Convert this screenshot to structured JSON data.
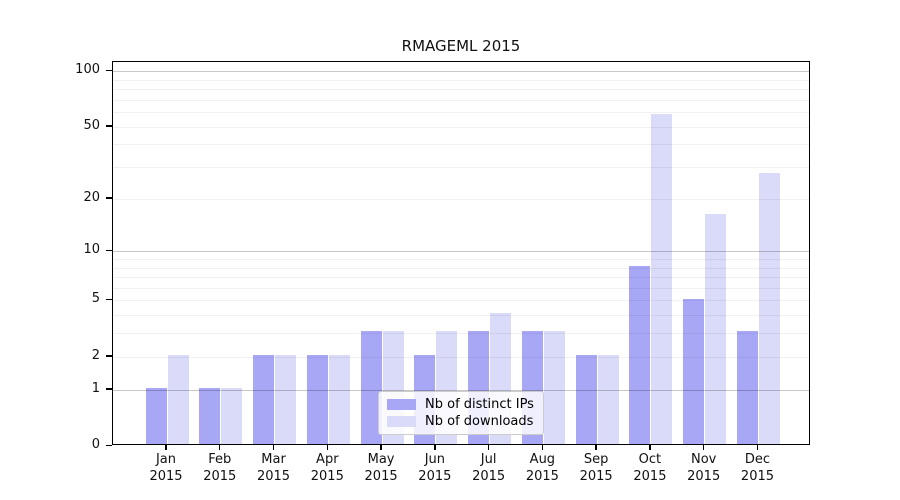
{
  "chart_data": {
    "type": "bar",
    "title": "RMAGEML 2015",
    "year": "2015",
    "categories": [
      "Jan",
      "Feb",
      "Mar",
      "Apr",
      "May",
      "Jun",
      "Jul",
      "Aug",
      "Sep",
      "Oct",
      "Nov",
      "Dec"
    ],
    "series": [
      {
        "name": "Nb of distinct IPs",
        "color": "#a7a7f6",
        "values": [
          1,
          1,
          2,
          2,
          3,
          2,
          3,
          3,
          2,
          8,
          5,
          3
        ]
      },
      {
        "name": "Nb of downloads",
        "color": "#dadaf9",
        "values": [
          2,
          1,
          2,
          2,
          3,
          3,
          4,
          3,
          2,
          57,
          16,
          27
        ]
      }
    ],
    "yscale": "log1p",
    "ylim": [
      0,
      113
    ],
    "yticks": [
      0,
      1,
      2,
      5,
      10,
      20,
      50,
      100
    ],
    "grid_major": [
      1,
      10,
      100
    ],
    "grid_minor": [
      2,
      3,
      4,
      5,
      6,
      7,
      8,
      9,
      20,
      30,
      40,
      50,
      60,
      70,
      80,
      90
    ],
    "grid": true,
    "legend_position": "bottom-center"
  }
}
